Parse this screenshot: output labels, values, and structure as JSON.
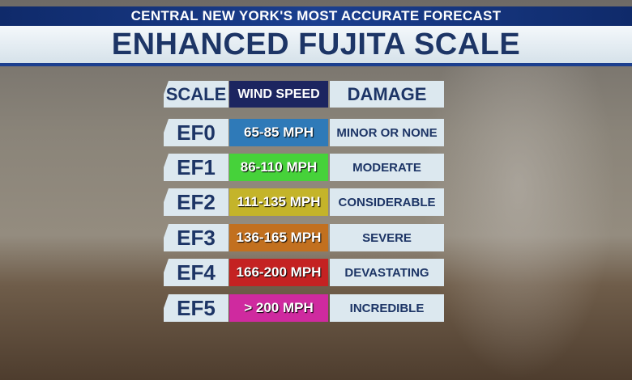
{
  "header": {
    "banner": "CENTRAL NEW YORK'S MOST ACCURATE FORECAST",
    "title": "ENHANCED FUJITA SCALE"
  },
  "table": {
    "headers": [
      "SCALE",
      "WIND SPEED",
      "DAMAGE"
    ],
    "rows": [
      [
        "EF0",
        "65-85 MPH",
        "MINOR OR NONE"
      ],
      [
        "EF1",
        "86-110 MPH",
        "MODERATE"
      ],
      [
        "EF2",
        "111-135 MPH",
        "CONSIDERABLE"
      ],
      [
        "EF3",
        "136-165 MPH",
        "SEVERE"
      ],
      [
        "EF4",
        "166-200 MPH",
        "DEVASTATING"
      ],
      [
        "EF5",
        "> 200 MPH",
        "INCREDIBLE"
      ]
    ],
    "colors": [
      "#2f7ab8",
      "#46d23a",
      "#c4b42a",
      "#c2701f",
      "#c42222",
      "#cf2a9f"
    ]
  }
}
